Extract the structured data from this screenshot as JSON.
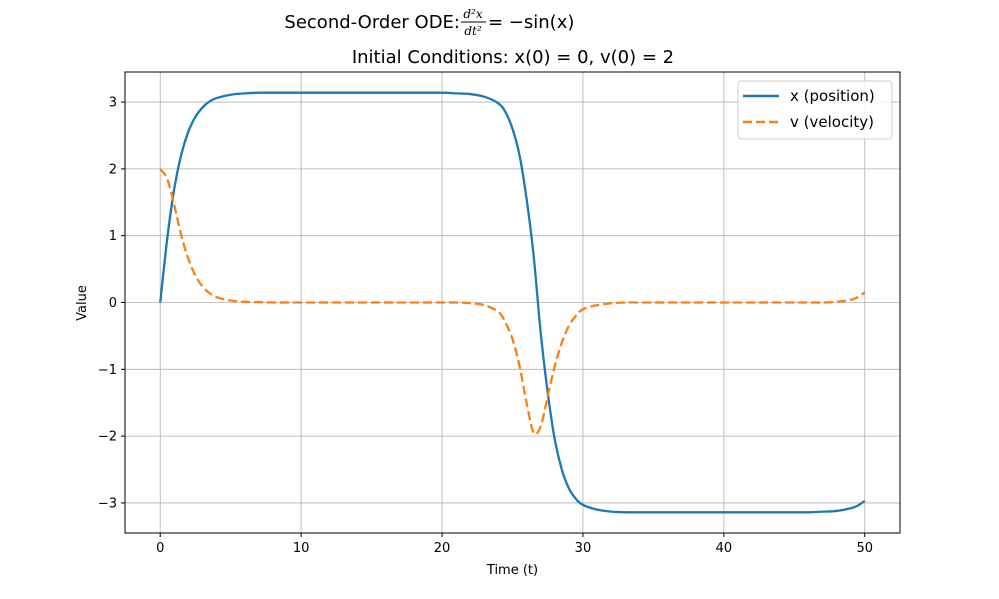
{
  "chart_data": {
    "type": "line",
    "title_line1_prefix": "Second-Order ODE: ",
    "title_frac_num": "d²x",
    "title_frac_den": "dt²",
    "title_line1_suffix": " = −sin(x)",
    "title_line2": "Initial Conditions: x(0) = 0, v(0) = 2",
    "xlabel": "Time (t)",
    "ylabel": "Value",
    "xlim": [
      -2.5,
      52.5
    ],
    "ylim": [
      -3.45,
      3.45
    ],
    "xticks": [
      0,
      10,
      20,
      30,
      40,
      50
    ],
    "xtick_labels": [
      "0",
      "10",
      "20",
      "30",
      "40",
      "50"
    ],
    "yticks": [
      -3,
      -2,
      -1,
      0,
      1,
      2,
      3
    ],
    "ytick_labels": [
      "−3",
      "−2",
      "−1",
      "0",
      "1",
      "2",
      "3"
    ],
    "grid": true,
    "legend_position": "top-right",
    "series": [
      {
        "name": "x (position)",
        "color": "#1f77b4",
        "style": "solid",
        "x": [
          0,
          0.5,
          1,
          1.5,
          2,
          2.5,
          3,
          3.5,
          4,
          5,
          6,
          7,
          8,
          10,
          12,
          14,
          16,
          18,
          20,
          21,
          22,
          23,
          24,
          24.5,
          25,
          25.5,
          26,
          26.5,
          27,
          27.5,
          28,
          28.5,
          29,
          29.5,
          30,
          31,
          32,
          33,
          34,
          36,
          38,
          40,
          42,
          44,
          46,
          47,
          48,
          49,
          49.5,
          50
        ],
        "y": [
          0,
          0.96,
          1.71,
          2.22,
          2.56,
          2.78,
          2.92,
          3.01,
          3.06,
          3.11,
          3.13,
          3.14,
          3.14,
          3.14,
          3.14,
          3.14,
          3.14,
          3.14,
          3.14,
          3.13,
          3.12,
          3.08,
          2.98,
          2.85,
          2.6,
          2.2,
          1.55,
          0.7,
          -0.45,
          -1.35,
          -2.05,
          -2.5,
          -2.78,
          -2.94,
          -3.03,
          -3.1,
          -3.13,
          -3.14,
          -3.14,
          -3.14,
          -3.14,
          -3.14,
          -3.14,
          -3.14,
          -3.14,
          -3.13,
          -3.12,
          -3.08,
          -3.04,
          -2.97
        ]
      },
      {
        "name": "v (velocity)",
        "color": "#ff7f0e",
        "style": "dashed",
        "x": [
          0,
          0.5,
          1,
          1.5,
          2,
          2.5,
          3,
          3.5,
          4,
          5,
          6,
          7,
          8,
          10,
          12,
          14,
          16,
          18,
          20,
          21,
          22,
          23,
          24,
          24.5,
          25,
          25.5,
          26,
          26.5,
          27,
          27.5,
          28,
          28.5,
          29,
          29.5,
          30,
          31,
          32,
          33,
          34,
          36,
          38,
          40,
          42,
          44,
          46,
          47,
          48,
          49,
          49.5,
          50
        ],
        "y": [
          2,
          1.85,
          1.45,
          1.0,
          0.65,
          0.4,
          0.24,
          0.14,
          0.08,
          0.03,
          0.01,
          0.005,
          0,
          0,
          0,
          0,
          0,
          0,
          0,
          0,
          -0.01,
          -0.04,
          -0.14,
          -0.3,
          -0.55,
          -0.95,
          -1.5,
          -1.95,
          -1.85,
          -1.4,
          -0.95,
          -0.6,
          -0.35,
          -0.2,
          -0.1,
          -0.04,
          -0.01,
          0,
          0,
          0,
          0,
          0,
          0,
          0,
          0,
          0,
          0.01,
          0.04,
          0.08,
          0.15
        ]
      }
    ]
  }
}
